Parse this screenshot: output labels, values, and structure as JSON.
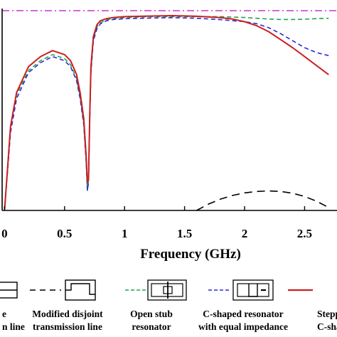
{
  "chart_data": {
    "type": "line",
    "title": "",
    "xlabel": "Frequency (GHz)",
    "ylabel": "",
    "xlim": [
      -0.02,
      2.77
    ],
    "ylim": [
      0,
      1
    ],
    "x_ticks": [
      "0",
      "0.5",
      "1",
      "1.5",
      "2",
      "2.5"
    ],
    "tick_values": [
      0,
      0.5,
      1,
      1.5,
      2,
      2.5
    ],
    "grid": false,
    "legend_position": "bottom",
    "series": [
      {
        "name": "Modified disjoint transmission line",
        "color": "#000000",
        "dash": "dashed",
        "x": [
          1.6,
          1.7,
          1.8,
          1.9,
          2.0,
          2.1,
          2.2,
          2.3,
          2.4,
          2.5,
          2.6,
          2.7
        ],
        "y": [
          0.0,
          0.032,
          0.057,
          0.075,
          0.088,
          0.095,
          0.098,
          0.095,
          0.086,
          0.07,
          0.046,
          0.015
        ]
      },
      {
        "name": "Open stub resonator",
        "color": "#22a64c",
        "dash": "dashed",
        "x": [
          0.0,
          0.05,
          0.1,
          0.2,
          0.3,
          0.4,
          0.5,
          0.55,
          0.6,
          0.63,
          0.66,
          0.68,
          0.69,
          0.7,
          0.71,
          0.72,
          0.74,
          0.77,
          0.8,
          0.85,
          0.9,
          1.0,
          1.2,
          1.4,
          1.6,
          1.8,
          2.0,
          2.1,
          2.2,
          2.3,
          2.4,
          2.5,
          2.6,
          2.7
        ],
        "y": [
          0.0,
          0.4,
          0.58,
          0.7,
          0.75,
          0.78,
          0.76,
          0.73,
          0.66,
          0.57,
          0.44,
          0.25,
          0.1,
          0.15,
          0.45,
          0.7,
          0.86,
          0.92,
          0.94,
          0.955,
          0.96,
          0.965,
          0.97,
          0.97,
          0.97,
          0.97,
          0.966,
          0.962,
          0.958,
          0.956,
          0.956,
          0.957,
          0.96,
          0.962
        ]
      },
      {
        "name": "C-shaped resonator with equal impedance",
        "color": "#2a2ad8",
        "dash": "dashed",
        "x": [
          0.0,
          0.05,
          0.1,
          0.2,
          0.3,
          0.4,
          0.5,
          0.55,
          0.6,
          0.63,
          0.66,
          0.68,
          0.69,
          0.7,
          0.71,
          0.72,
          0.74,
          0.77,
          0.8,
          0.85,
          0.9,
          1.0,
          1.2,
          1.4,
          1.6,
          1.8,
          1.9,
          2.0,
          2.1,
          2.2,
          2.3,
          2.4,
          2.5,
          2.6,
          2.7
        ],
        "y": [
          0.0,
          0.39,
          0.56,
          0.69,
          0.74,
          0.77,
          0.75,
          0.72,
          0.65,
          0.56,
          0.43,
          0.24,
          0.1,
          0.14,
          0.44,
          0.69,
          0.85,
          0.91,
          0.935,
          0.95,
          0.955,
          0.96,
          0.963,
          0.965,
          0.962,
          0.955,
          0.95,
          0.945,
          0.935,
          0.915,
          0.885,
          0.85,
          0.815,
          0.79,
          0.775
        ]
      },
      {
        "name": "Stepped C-shape",
        "color": "#cc1f1f",
        "dash": "solid",
        "x": [
          0.0,
          0.05,
          0.1,
          0.2,
          0.3,
          0.4,
          0.5,
          0.55,
          0.6,
          0.63,
          0.66,
          0.68,
          0.69,
          0.7,
          0.71,
          0.72,
          0.74,
          0.77,
          0.8,
          0.85,
          0.9,
          1.0,
          1.2,
          1.4,
          1.6,
          1.8,
          1.9,
          2.0,
          2.1,
          2.2,
          2.3,
          2.4,
          2.5,
          2.6,
          2.7
        ],
        "y": [
          0.0,
          0.42,
          0.59,
          0.72,
          0.77,
          0.8,
          0.78,
          0.75,
          0.68,
          0.59,
          0.46,
          0.27,
          0.14,
          0.16,
          0.47,
          0.72,
          0.87,
          0.93,
          0.95,
          0.96,
          0.965,
          0.97,
          0.973,
          0.975,
          0.972,
          0.965,
          0.958,
          0.945,
          0.925,
          0.895,
          0.855,
          0.815,
          0.77,
          0.725,
          0.68
        ]
      }
    ],
    "reference_lines": [
      {
        "color": "#cc33cc",
        "dash": "dash-dot",
        "y": 1.0
      }
    ]
  },
  "legend": [
    {
      "symbol": "line-section",
      "line": "solid",
      "color": "#000000",
      "lines": [
        "e",
        "n line"
      ]
    },
    {
      "symbol": "disjoint-line",
      "line": "dashed",
      "color": "#000000",
      "lines": [
        "Modified disjoint",
        "transmission line"
      ]
    },
    {
      "symbol": "open-stub",
      "line": "dashed",
      "color": "#22a64c",
      "lines": [
        "Open stub",
        "resonator"
      ]
    },
    {
      "symbol": "c-shaped-equal",
      "line": "dashed",
      "color": "#2a2ad8",
      "lines": [
        "C-shaped resonator",
        "with equal impedance"
      ]
    },
    {
      "symbol": "stepped-c",
      "line": "solid",
      "color": "#cc1f1f",
      "lines": [
        "Stepped",
        "C-shape"
      ]
    }
  ]
}
